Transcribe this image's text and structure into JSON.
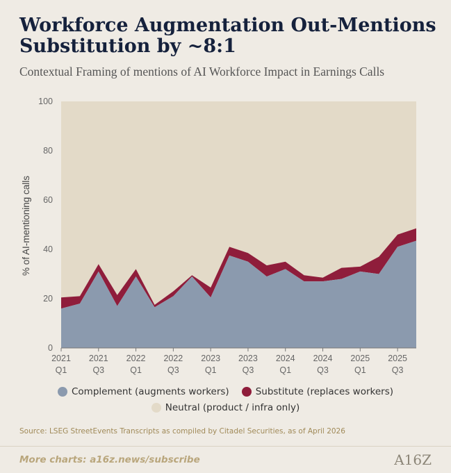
{
  "header": {
    "title": "Workforce Augmentation Out-Mentions Substitution by ~8:1",
    "subtitle": "Contextual Framing of mentions of AI Workforce Impact in Earnings Calls"
  },
  "chart_data": {
    "type": "area",
    "stacked": true,
    "ylabel": "% of AI-mentioning calls",
    "ylim": [
      0,
      100
    ],
    "yticks": [
      0,
      20,
      40,
      60,
      80,
      100
    ],
    "x_tick_labels": [
      {
        "year": "2021",
        "quarter": "Q1"
      },
      {
        "year": "2021",
        "quarter": "Q3"
      },
      {
        "year": "2022",
        "quarter": "Q1"
      },
      {
        "year": "2022",
        "quarter": "Q3"
      },
      {
        "year": "2023",
        "quarter": "Q1"
      },
      {
        "year": "2023",
        "quarter": "Q3"
      },
      {
        "year": "2024",
        "quarter": "Q1"
      },
      {
        "year": "2024",
        "quarter": "Q3"
      },
      {
        "year": "2025",
        "quarter": "Q1"
      },
      {
        "year": "2025",
        "quarter": "Q3"
      }
    ],
    "x": [
      "2021 Q1",
      "2021 Q2",
      "2021 Q3",
      "2021 Q4",
      "2022 Q1",
      "2022 Q2",
      "2022 Q3",
      "2022 Q4",
      "2023 Q1",
      "2023 Q2",
      "2023 Q3",
      "2023 Q4",
      "2024 Q1",
      "2024 Q2",
      "2024 Q3",
      "2024 Q4",
      "2025 Q1",
      "2025 Q2",
      "2025 Q3",
      "2025 Q4"
    ],
    "series": [
      {
        "name": "Complement (augments workers)",
        "color": "#8b9aae",
        "values": [
          16,
          18,
          31,
          17,
          29,
          16.5,
          21,
          29,
          20.5,
          37.5,
          35,
          29,
          32,
          27,
          27,
          28,
          31,
          30,
          41,
          43.5
        ]
      },
      {
        "name": "Substitute (replaces workers)",
        "color": "#8f1d3b",
        "values": [
          4.5,
          3,
          3,
          4.5,
          3,
          1,
          2,
          0.5,
          4,
          3.5,
          3.5,
          4.5,
          3,
          2.5,
          1.5,
          4.5,
          2,
          7,
          5,
          5
        ]
      },
      {
        "name": "Neutral (product / infra only)",
        "color": "#e3dac8",
        "values": [
          79.5,
          79,
          66,
          78.5,
          68,
          82.5,
          77,
          70.5,
          75.5,
          59,
          61.5,
          66.5,
          65,
          70.5,
          71.5,
          67.5,
          67,
          63,
          54,
          51.5
        ]
      }
    ],
    "legend_position": "bottom-center",
    "grid": false
  },
  "source": "Source: LSEG StreetEvents Transcripts as compiled by Citadel Securities, as of April 2026",
  "footer": {
    "link": "More charts: a16z.news/subscribe",
    "logo": "A16Z"
  }
}
